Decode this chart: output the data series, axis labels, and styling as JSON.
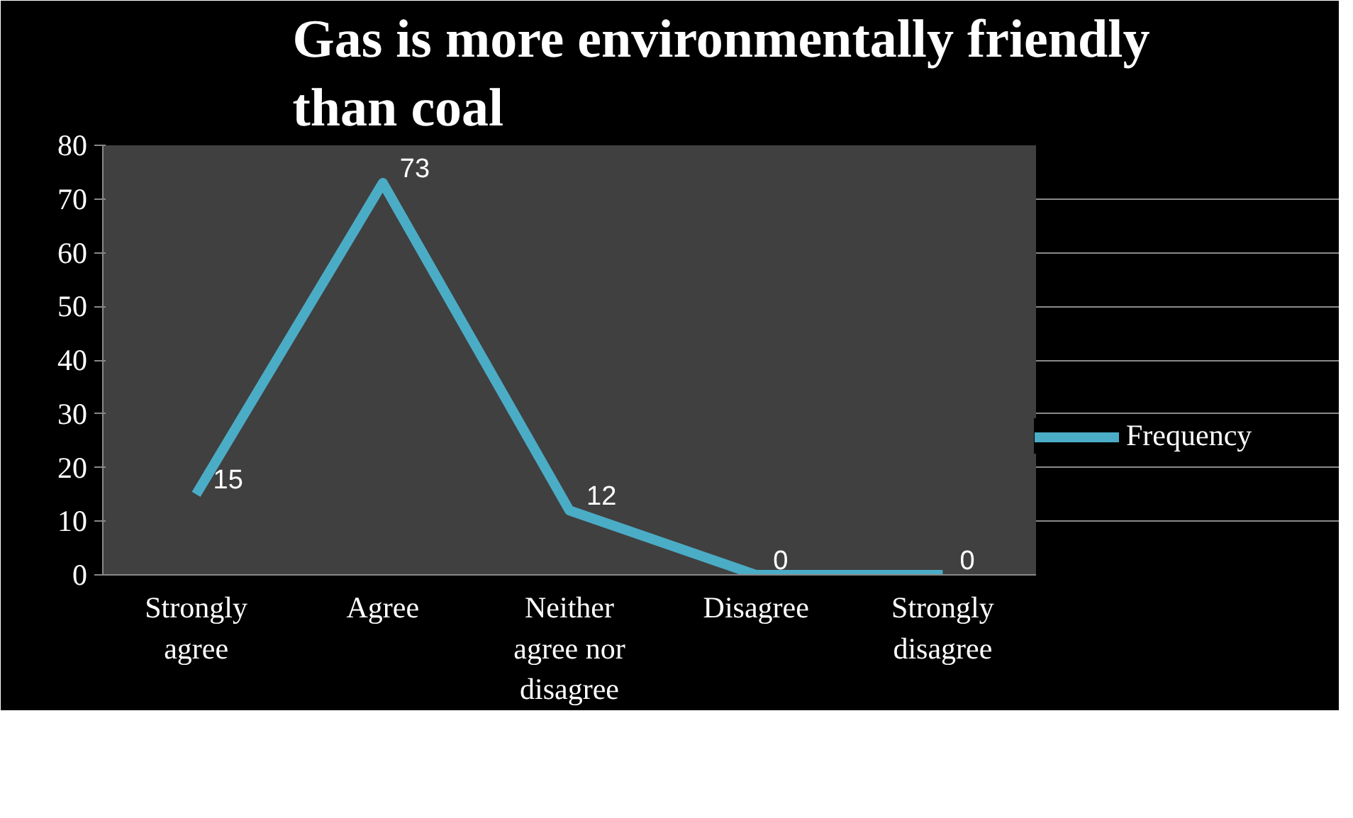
{
  "chart_data": {
    "type": "line",
    "title": "Gas is more environmentally friendly than coal",
    "categories": [
      "Strongly agree",
      "Agree",
      "Neither agree nor disagree",
      "Disagree",
      "Strongly disagree"
    ],
    "series": [
      {
        "name": "Frequency",
        "color": "#4bacc6",
        "values": [
          15,
          73,
          12,
          0,
          0
        ]
      }
    ],
    "ylim": [
      0,
      80
    ],
    "yticks": [
      0,
      10,
      20,
      30,
      40,
      50,
      60,
      70,
      80
    ],
    "grid": "y",
    "legend": "right",
    "data_labels": true,
    "marker": "none",
    "line_style": "solid"
  }
}
